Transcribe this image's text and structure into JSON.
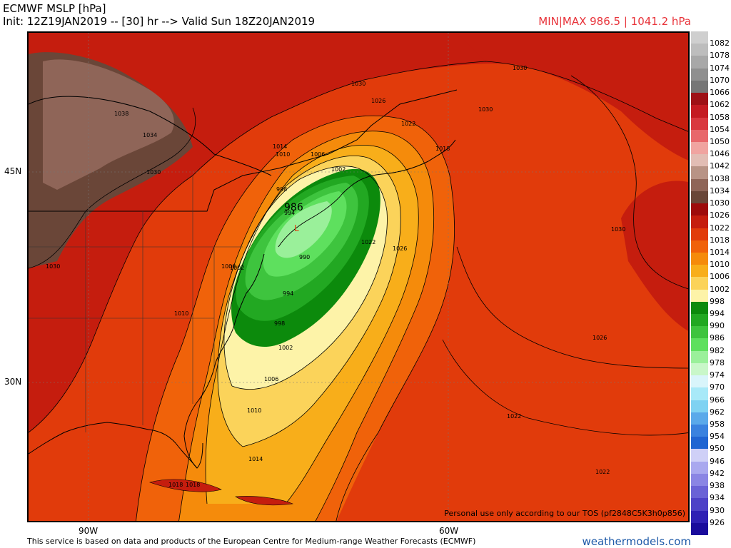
{
  "header": {
    "title": "ECMWF MSLP [hPa]",
    "subtitle": "Init: 12Z19JAN2019 -- [30] hr --> Valid Sun 18Z20JAN2019",
    "minmax": "MIN|MAX 986.5 | 1041.2 hPa"
  },
  "axes": {
    "lat_labels": [
      "45N",
      "30N"
    ],
    "lon_labels": [
      "90W",
      "60W"
    ]
  },
  "map": {
    "center_low_label": "986",
    "tos_note": "Personal use only according to our TOS (pf2848C5K3h0p856)",
    "contour_labels": [
      "1038",
      "1034",
      "1030",
      "1030",
      "1030",
      "1026",
      "1022",
      "1018",
      "1014",
      "1010",
      "1006",
      "1002",
      "998",
      "994",
      "990",
      "994",
      "998",
      "1002",
      "1006",
      "1010",
      "1014",
      "1018",
      "1022",
      "1026",
      "1030",
      "1030",
      "1030",
      "1026",
      "1022",
      "1022",
      "1010",
      "1006",
      "1002",
      "1018"
    ]
  },
  "footer": {
    "source_note": "This service is based on data and products of the European Centre for Medium-range Weather Forecasts (ECMWF)",
    "brand": "weathermodels.com"
  },
  "colorbar": {
    "labels": [
      "1082",
      "1078",
      "1074",
      "1070",
      "1066",
      "1062",
      "1058",
      "1054",
      "1050",
      "1046",
      "1042",
      "1038",
      "1034",
      "1030",
      "1026",
      "1022",
      "1018",
      "1014",
      "1010",
      "1006",
      "1002",
      "998",
      "994",
      "990",
      "986",
      "982",
      "978",
      "974",
      "970",
      "966",
      "962",
      "958",
      "954",
      "950",
      "946",
      "942",
      "938",
      "934",
      "930",
      "926"
    ],
    "colors": [
      "#cfcfcf",
      "#bdbdbd",
      "#a8a8a8",
      "#8f8f8f",
      "#767676",
      "#9e1116",
      "#c41b22",
      "#d9383f",
      "#e8686b",
      "#f0a4a0",
      "#e2bdb4",
      "#b89385",
      "#8f6558",
      "#6a4638",
      "#9e0b0b",
      "#c51d0e",
      "#e13b0b",
      "#f0620a",
      "#f58b0b",
      "#f8ae1a",
      "#fbd35a",
      "#fdf3a8",
      "#0c8a0c",
      "#22a822",
      "#3ec43e",
      "#5ee05e",
      "#9af09a",
      "#c9f7c9",
      "#d9f5fb",
      "#a8e9f8",
      "#7fd2f2",
      "#5aa9ea",
      "#3a82df",
      "#2064d2",
      "#cfd0f7",
      "#a9a8ef",
      "#8a85e4",
      "#6a62d6",
      "#4d41c7",
      "#2f20b4",
      "#1a0b9c"
    ]
  }
}
